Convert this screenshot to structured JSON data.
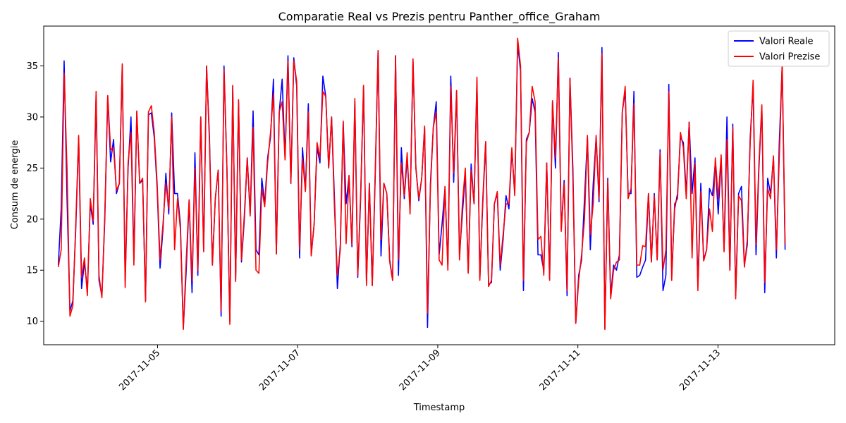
{
  "chart_data": {
    "type": "line",
    "title": "Comparatie Real vs Prezis pentru Panther_office_Graham",
    "xlabel": "Timestamp",
    "ylabel": "Consum de energie",
    "x_range": [
      "2017-11-03T09:00",
      "2017-11-14T16:00"
    ],
    "ylim": [
      7.7,
      38.9
    ],
    "x_ticks": [
      "2017-11-05",
      "2017-11-07",
      "2017-11-09",
      "2017-11-11",
      "2017-11-13"
    ],
    "y_ticks": [
      10,
      15,
      20,
      25,
      30,
      35
    ],
    "grid": false,
    "legend_position": "top-right",
    "x_start": "2017-11-03T14:00",
    "x_end": "2017-11-13T23:00",
    "series": [
      {
        "name": "Valori Reale",
        "color": "#0000ff",
        "values": [
          15.5,
          21.0,
          35.5,
          22.0,
          11.0,
          12.0,
          19.0,
          28.0,
          13.2,
          15.8,
          13.0,
          21.5,
          19.5,
          32.0,
          14.0,
          12.5,
          20.0,
          32.0,
          25.6,
          27.8,
          22.5,
          23.5,
          35.0,
          14.0,
          25.0,
          30.0,
          16.0,
          30.5,
          23.5,
          23.8,
          12.0,
          30.2,
          30.4,
          28.0,
          23.0,
          15.2,
          19.0,
          24.5,
          20.5,
          30.4,
          22.5,
          22.5,
          19.5,
          9.3,
          15.0,
          21.8,
          12.8,
          26.5,
          14.5,
          30.0,
          17.0,
          35.0,
          28.0,
          15.5,
          22.0,
          24.8,
          10.5,
          35.0,
          25.0,
          10.0,
          33.0,
          14.0,
          31.5,
          15.8,
          20.0,
          26.0,
          20.5,
          30.6,
          17.0,
          16.5,
          24.0,
          21.5,
          26.0,
          28.0,
          33.7,
          16.6,
          30.5,
          33.7,
          26.0,
          36.0,
          23.5,
          35.8,
          33.0,
          16.2,
          27.0,
          22.8,
          31.3,
          16.5,
          19.5,
          27.0,
          25.5,
          34.0,
          32.0,
          25.0,
          30.0,
          22.0,
          13.2,
          17.5,
          29.5,
          21.5,
          24.2,
          17.3,
          31.5,
          14.3,
          22.0,
          33.0,
          13.8,
          23.5,
          13.5,
          24.0,
          36.5,
          16.4,
          23.5,
          22.5,
          16.0,
          14.0,
          36.0,
          14.5,
          27.0,
          22.0,
          26.0,
          21.0,
          35.5,
          25.0,
          21.8,
          24.0,
          29.0,
          9.4,
          23.5,
          29.0,
          31.5,
          16.5,
          19.5,
          23.0,
          15.5,
          34.0,
          23.6,
          32.5,
          16.5,
          20.5,
          24.5,
          14.8,
          25.4,
          21.5,
          33.5,
          14.2,
          21.5,
          27.5,
          13.6,
          13.8,
          21.5,
          22.5,
          15.0,
          18.0,
          22.3,
          21.0,
          26.8,
          22.5,
          37.2,
          34.5,
          13.0,
          27.8,
          28.5,
          31.8,
          30.5,
          16.5,
          16.5,
          15.0,
          25.5,
          14.2,
          31.5,
          25.0,
          36.3,
          19.0,
          23.8,
          12.5,
          33.8,
          25.0,
          9.8,
          14.5,
          16.0,
          22.0,
          28.0,
          17.0,
          23.5,
          28.0,
          21.7,
          36.8,
          9.3,
          24.0,
          12.5,
          15.5,
          15.0,
          16.5,
          30.5,
          32.5,
          22.5,
          22.5,
          32.5,
          14.3,
          14.5,
          15.3,
          16.0,
          22.5,
          15.8,
          22.5,
          16.0,
          26.8,
          13.0,
          14.5,
          33.2,
          14.5,
          21.0,
          22.5,
          28.0,
          27.5,
          22.5,
          29.5,
          22.5,
          26.0,
          13.5,
          23.5,
          16.0,
          17.0,
          23.0,
          22.3,
          25.5,
          20.5,
          26.0,
          17.0,
          30.0,
          15.0,
          29.3,
          12.5,
          22.5,
          23.2,
          15.5,
          17.5,
          28.0,
          33.0,
          16.5,
          25.0,
          31.0,
          12.8,
          24.0,
          22.5,
          26.0,
          16.2,
          27.5,
          35.0,
          17.0
        ],
        "values_note": ""
      },
      {
        "name": "Valori Prezise",
        "color": "#ff0000",
        "values": [
          15.3,
          17.0,
          34.3,
          25.0,
          10.5,
          11.5,
          19.5,
          28.2,
          14.3,
          16.2,
          12.5,
          22.0,
          19.8,
          32.5,
          14.5,
          12.3,
          20.5,
          32.1,
          26.8,
          27.0,
          22.8,
          23.5,
          35.2,
          13.3,
          25.5,
          28.5,
          15.5,
          30.6,
          23.5,
          24.0,
          11.9,
          30.5,
          31.1,
          28.5,
          23.5,
          16.0,
          19.5,
          23.5,
          21.0,
          30.0,
          17.0,
          22.0,
          19.0,
          9.2,
          16.0,
          21.9,
          14.0,
          25.0,
          15.0,
          30.0,
          16.8,
          35.0,
          27.5,
          15.5,
          22.0,
          24.8,
          11.0,
          34.6,
          25.0,
          9.7,
          33.1,
          13.9,
          31.7,
          16.0,
          20.5,
          26.0,
          20.3,
          29.0,
          15.0,
          14.7,
          23.0,
          21.2,
          25.5,
          28.5,
          32.3,
          16.6,
          30.5,
          31.5,
          25.8,
          35.5,
          23.5,
          35.5,
          33.5,
          17.0,
          26.0,
          22.7,
          30.5,
          16.4,
          19.5,
          27.5,
          26.0,
          32.5,
          32.0,
          25.0,
          30.0,
          21.0,
          14.5,
          17.0,
          29.6,
          17.6,
          24.3,
          17.5,
          31.8,
          14.5,
          22.5,
          33.1,
          13.5,
          23.5,
          13.5,
          24.5,
          36.5,
          18.0,
          23.5,
          22.5,
          15.8,
          14.0,
          36.0,
          16.0,
          25.5,
          22.3,
          26.5,
          20.5,
          35.7,
          25.0,
          22.0,
          24.0,
          29.1,
          10.8,
          23.0,
          29.0,
          30.5,
          16.0,
          15.5,
          23.2,
          15.0,
          33.0,
          24.5,
          32.6,
          16.0,
          21.5,
          25.0,
          14.7,
          24.8,
          21.5,
          33.9,
          14.0,
          22.0,
          27.6,
          13.4,
          14.0,
          21.5,
          22.7,
          15.5,
          18.5,
          21.5,
          21.5,
          27.0,
          22.3,
          37.7,
          35.0,
          14.0,
          27.5,
          28.5,
          33.0,
          31.5,
          18.0,
          18.3,
          14.5,
          25.5,
          14.0,
          31.6,
          26.0,
          35.8,
          18.8,
          23.5,
          13.0,
          33.8,
          24.0,
          9.8,
          14.0,
          16.5,
          20.0,
          28.2,
          18.5,
          21.5,
          28.2,
          22.0,
          36.2,
          9.2,
          23.8,
          12.2,
          15.0,
          15.8,
          16.0,
          30.5,
          33.0,
          22.0,
          23.0,
          31.3,
          15.5,
          15.5,
          17.4,
          17.3,
          22.5,
          15.8,
          22.3,
          16.0,
          26.5,
          15.0,
          17.0,
          32.5,
          14.0,
          21.5,
          22.0,
          28.5,
          27.0,
          22.0,
          29.5,
          16.2,
          25.5,
          13.0,
          22.7,
          15.9,
          17.0,
          21.0,
          18.8,
          26.0,
          22.0,
          26.3,
          16.8,
          27.8,
          15.0,
          29.0,
          12.2,
          22.3,
          21.8,
          15.3,
          18.0,
          27.5,
          33.6,
          17.5,
          25.5,
          31.2,
          13.8,
          23.0,
          22.0,
          26.2,
          17.0,
          26.0,
          35.3,
          17.5
        ]
      }
    ]
  }
}
